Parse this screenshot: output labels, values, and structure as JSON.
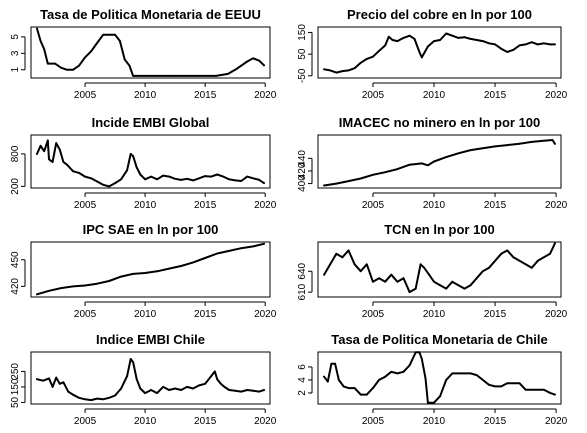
{
  "chart_data": [
    {
      "type": "line",
      "title": "Tasa de Politica Monetaria de EEUU",
      "xlim": [
        2000.5,
        2020.4
      ],
      "ylim": [
        0,
        6.2
      ],
      "x_ticks": [
        2005,
        2010,
        2015,
        2020
      ],
      "y_ticks": [
        1,
        3,
        5
      ],
      "x_tick_labels_visible": true,
      "x": [
        2001.0,
        2001.3,
        2001.6,
        2001.9,
        2002.5,
        2003.0,
        2003.5,
        2004.0,
        2004.5,
        2005.0,
        2005.5,
        2006.0,
        2006.5,
        2007.0,
        2007.5,
        2007.9,
        2008.3,
        2008.7,
        2009.0,
        2012.0,
        2015.9,
        2016.9,
        2017.5,
        2018.0,
        2018.5,
        2019.0,
        2019.5,
        2019.9
      ],
      "y": [
        6.0,
        4.5,
        3.5,
        1.75,
        1.75,
        1.25,
        1.0,
        1.0,
        1.5,
        2.5,
        3.25,
        4.25,
        5.25,
        5.25,
        5.25,
        4.5,
        2.25,
        1.5,
        0.25,
        0.25,
        0.25,
        0.5,
        1.0,
        1.5,
        2.0,
        2.4,
        2.1,
        1.55
      ]
    },
    {
      "type": "line",
      "title": "Precio del cobre en ln por 100",
      "xlim": [
        2000.5,
        2020.4
      ],
      "ylim": [
        -60,
        175
      ],
      "x_ticks": [
        2005,
        2010,
        2015,
        2020
      ],
      "y_ticks": [
        -50,
        50,
        150
      ],
      "x_tick_labels_visible": true,
      "x": [
        2001.0,
        2001.5,
        2002.0,
        2002.5,
        2003.0,
        2003.5,
        2004.0,
        2004.5,
        2005.0,
        2005.5,
        2006.0,
        2006.3,
        2006.6,
        2007.0,
        2007.5,
        2008.0,
        2008.4,
        2008.8,
        2009.0,
        2009.5,
        2010.0,
        2010.5,
        2011.0,
        2011.5,
        2012.0,
        2012.5,
        2013.0,
        2013.5,
        2014.0,
        2014.5,
        2015.0,
        2015.5,
        2016.0,
        2016.5,
        2017.0,
        2017.5,
        2018.0,
        2018.5,
        2019.0,
        2019.5,
        2019.9
      ],
      "y": [
        -20,
        -25,
        -35,
        -28,
        -25,
        -15,
        10,
        28,
        38,
        65,
        90,
        130,
        115,
        110,
        125,
        135,
        120,
        60,
        35,
        85,
        110,
        115,
        145,
        135,
        125,
        128,
        120,
        115,
        110,
        100,
        95,
        75,
        60,
        70,
        90,
        95,
        105,
        95,
        100,
        95,
        95
      ]
    },
    {
      "type": "line",
      "title": "Incide EMBI Global",
      "xlim": [
        2000.5,
        2020.4
      ],
      "ylim": [
        170,
        1150
      ],
      "x_ticks": [
        2005,
        2010,
        2015,
        2020
      ],
      "y_ticks": [
        200,
        800
      ],
      "x_tick_labels_visible": true,
      "x": [
        2001.0,
        2001.3,
        2001.6,
        2001.9,
        2002.0,
        2002.3,
        2002.6,
        2002.9,
        2003.2,
        2003.5,
        2004.0,
        2004.5,
        2005.0,
        2005.5,
        2006.0,
        2006.5,
        2007.0,
        2007.5,
        2008.0,
        2008.5,
        2008.8,
        2009.0,
        2009.3,
        2009.6,
        2010.0,
        2010.5,
        2011.0,
        2011.5,
        2012.0,
        2012.5,
        2013.0,
        2013.5,
        2014.0,
        2014.5,
        2015.0,
        2015.5,
        2016.0,
        2016.5,
        2017.0,
        2017.5,
        2018.0,
        2018.5,
        2019.0,
        2019.5,
        2019.9
      ],
      "y": [
        800,
        950,
        850,
        1050,
        700,
        650,
        1000,
        880,
        650,
        600,
        480,
        450,
        380,
        350,
        290,
        230,
        200,
        260,
        330,
        500,
        800,
        760,
        550,
        420,
        330,
        380,
        330,
        400,
        380,
        340,
        320,
        340,
        310,
        350,
        390,
        380,
        420,
        380,
        330,
        310,
        300,
        380,
        350,
        320,
        260
      ]
    },
    {
      "type": "line",
      "title": "IMACEC no minero en ln por 100",
      "xlim": [
        2000.5,
        2020.4
      ],
      "ylim": [
        393,
        477
      ],
      "x_ticks": [
        2005,
        2010,
        2015,
        2020
      ],
      "y_ticks": [
        400,
        420,
        440
      ],
      "x_tick_labels_visible": true,
      "x": [
        2001.0,
        2002.0,
        2003.0,
        2004.0,
        2005.0,
        2006.0,
        2007.0,
        2008.0,
        2009.0,
        2009.5,
        2010.0,
        2011.0,
        2012.0,
        2013.0,
        2014.0,
        2015.0,
        2016.0,
        2017.0,
        2018.0,
        2019.0,
        2019.7,
        2019.9
      ],
      "y": [
        397,
        400,
        404,
        408,
        414,
        418,
        423,
        430,
        432,
        429,
        435,
        442,
        448,
        453,
        456,
        459,
        461,
        463,
        466,
        468,
        469,
        463
      ]
    },
    {
      "type": "line",
      "title": "IPC SAE en ln por 100",
      "xlim": [
        2000.5,
        2020.4
      ],
      "ylim": [
        408,
        470
      ],
      "x_ticks": [
        2005,
        2010,
        2015,
        2020
      ],
      "y_ticks": [
        420,
        450
      ],
      "x_tick_labels_visible": true,
      "x": [
        2001.0,
        2002.0,
        2003.0,
        2004.0,
        2005.0,
        2006.0,
        2007.0,
        2008.0,
        2009.0,
        2010.0,
        2011.0,
        2012.0,
        2013.0,
        2014.0,
        2015.0,
        2016.0,
        2017.0,
        2018.0,
        2019.0,
        2019.9
      ],
      "y": [
        411,
        415,
        418,
        420,
        421,
        423,
        426,
        431,
        434,
        435,
        437,
        440,
        443,
        447,
        452,
        457,
        460,
        463,
        465,
        468
      ]
    },
    {
      "type": "line",
      "title": "TCN en ln por 100",
      "xlim": [
        2000.5,
        2020.4
      ],
      "ylim": [
        603,
        682
      ],
      "x_ticks": [
        2005,
        2010,
        2015,
        2020
      ],
      "y_ticks": [
        610,
        640
      ],
      "x_tick_labels_visible": true,
      "x": [
        2001.0,
        2001.5,
        2002.0,
        2002.5,
        2003.0,
        2003.5,
        2004.0,
        2004.5,
        2005.0,
        2005.5,
        2006.0,
        2006.5,
        2007.0,
        2007.5,
        2008.0,
        2008.5,
        2008.9,
        2009.2,
        2009.6,
        2010.0,
        2010.5,
        2011.0,
        2011.5,
        2012.0,
        2012.5,
        2013.0,
        2013.5,
        2014.0,
        2014.5,
        2015.0,
        2015.5,
        2016.0,
        2016.5,
        2017.0,
        2017.5,
        2018.0,
        2018.5,
        2019.0,
        2019.5,
        2019.9
      ],
      "y": [
        635,
        650,
        665,
        660,
        670,
        650,
        640,
        650,
        625,
        630,
        625,
        635,
        625,
        630,
        610,
        615,
        650,
        645,
        635,
        625,
        620,
        615,
        625,
        620,
        615,
        620,
        630,
        640,
        645,
        655,
        665,
        670,
        660,
        655,
        650,
        645,
        655,
        660,
        665,
        680
      ]
    },
    {
      "type": "line",
      "title": "Indice EMBI Chile",
      "xlim": [
        2000.5,
        2020.4
      ],
      "ylim": [
        40,
        375
      ],
      "x_ticks": [
        2005,
        2010,
        2015,
        2020
      ],
      "y_ticks": [
        50,
        150,
        250
      ],
      "x_tick_labels_visible": true,
      "x": [
        2001.0,
        2001.5,
        2002.0,
        2002.3,
        2002.6,
        2002.9,
        2003.2,
        2003.6,
        2004.0,
        2004.5,
        2005.0,
        2005.5,
        2006.0,
        2006.5,
        2007.0,
        2007.5,
        2008.0,
        2008.5,
        2008.8,
        2009.0,
        2009.3,
        2009.6,
        2010.0,
        2010.5,
        2011.0,
        2011.5,
        2012.0,
        2012.5,
        2013.0,
        2013.5,
        2014.0,
        2014.5,
        2015.0,
        2015.5,
        2015.8,
        2016.0,
        2016.3,
        2016.6,
        2017.0,
        2017.5,
        2018.0,
        2018.5,
        2019.0,
        2019.5,
        2019.9
      ],
      "y": [
        200,
        190,
        205,
        150,
        210,
        170,
        180,
        120,
        100,
        80,
        70,
        65,
        75,
        70,
        80,
        95,
        140,
        220,
        330,
        310,
        200,
        140,
        110,
        130,
        110,
        150,
        130,
        140,
        130,
        150,
        140,
        160,
        170,
        220,
        250,
        200,
        170,
        150,
        130,
        125,
        120,
        130,
        125,
        120,
        130
      ]
    },
    {
      "type": "line",
      "title": "Tasa de Politica Monetaria de Chile",
      "xlim": [
        2000.5,
        2020.4
      ],
      "ylim": [
        0.3,
        8.3
      ],
      "x_ticks": [
        2005,
        2010,
        2015,
        2020
      ],
      "y_ticks": [
        2,
        4,
        6
      ],
      "x_tick_labels_visible": true,
      "x": [
        2001.0,
        2001.3,
        2001.6,
        2001.9,
        2002.2,
        2002.6,
        2003.0,
        2003.5,
        2004.0,
        2004.5,
        2005.0,
        2005.5,
        2006.0,
        2006.5,
        2007.0,
        2007.5,
        2008.0,
        2008.5,
        2008.8,
        2009.0,
        2009.3,
        2009.5,
        2010.0,
        2010.5,
        2011.0,
        2011.5,
        2012.0,
        2013.0,
        2013.5,
        2014.0,
        2014.5,
        2015.0,
        2015.5,
        2016.0,
        2017.0,
        2017.5,
        2018.0,
        2019.0,
        2019.5,
        2019.9
      ],
      "y": [
        4.5,
        3.75,
        6.5,
        6.5,
        4.0,
        3.0,
        2.75,
        2.75,
        1.75,
        1.75,
        2.75,
        4.0,
        4.5,
        5.25,
        5.0,
        5.25,
        6.25,
        8.25,
        8.25,
        7.25,
        4.25,
        0.5,
        0.5,
        1.5,
        4.0,
        5.0,
        5.0,
        5.0,
        4.75,
        4.0,
        3.25,
        3.0,
        3.0,
        3.5,
        3.5,
        2.5,
        2.5,
        2.5,
        2.0,
        1.75
      ]
    }
  ]
}
